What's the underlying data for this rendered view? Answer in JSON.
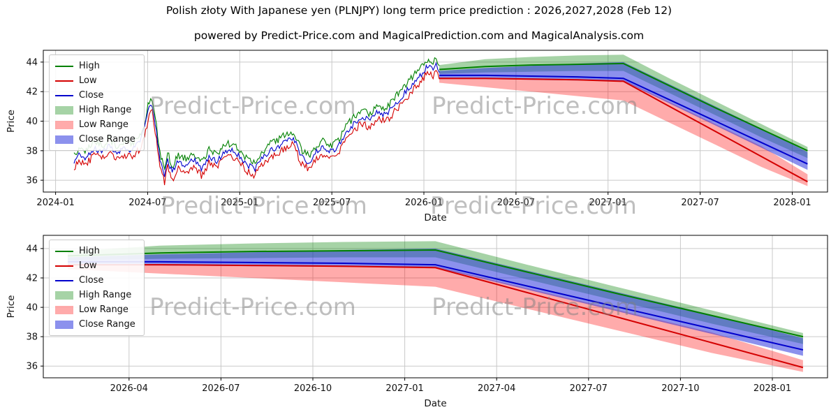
{
  "figure": {
    "title": "Polish złoty With Japanese yen (PLNJPY) long term price prediction : 2026,2027,2028 (Feb 12)",
    "subtitle": "powered by Predict-Price.com and MagicalPrediction.com and MagicalAnalysis.com",
    "watermark_text": "Predict-Price.com"
  },
  "colors": {
    "high": "#008000",
    "low": "#d40000",
    "close": "#0000cc",
    "high_range": "rgba(0,128,0,0.35)",
    "low_range": "rgba(255,0,0,0.33)",
    "close_range": "rgba(35,45,220,0.52)",
    "grid": "#c9c9c9"
  },
  "legend": {
    "items": [
      {
        "label": "High",
        "swatch": "line",
        "color_key": "high"
      },
      {
        "label": "Low",
        "swatch": "line",
        "color_key": "low"
      },
      {
        "label": "Close",
        "swatch": "line",
        "color_key": "close"
      },
      {
        "label": "High Range",
        "swatch": "patch",
        "color_key": "high_range"
      },
      {
        "label": "Low Range",
        "swatch": "patch",
        "color_key": "low_range"
      },
      {
        "label": "Close Range",
        "swatch": "patch",
        "color_key": "close_range"
      }
    ]
  },
  "chart_data": [
    {
      "type": "line",
      "name": "history-and-forecast",
      "xlabel": "Date",
      "ylabel": "Price",
      "x_unit": "months since 2024-01 (0 = 2024-01)",
      "xlim": [
        -0.8,
        50.3
      ],
      "ylim": [
        35.2,
        44.8
      ],
      "yticks": [
        36,
        38,
        40,
        42,
        44
      ],
      "xticks": [
        {
          "x": 0,
          "label": "2024-01"
        },
        {
          "x": 6,
          "label": "2024-07"
        },
        {
          "x": 12,
          "label": "2025-01"
        },
        {
          "x": 18,
          "label": "2025-07"
        },
        {
          "x": 24,
          "label": "2026-01"
        },
        {
          "x": 30,
          "label": "2026-07"
        },
        {
          "x": 36,
          "label": "2027-01"
        },
        {
          "x": 42,
          "label": "2027-07"
        },
        {
          "x": 48,
          "label": "2028-01"
        }
      ],
      "historical": {
        "x": [
          1.2,
          1.6,
          2.0,
          2.5,
          3.0,
          3.5,
          4.0,
          4.5,
          5.0,
          5.5,
          5.8,
          6.1,
          6.3,
          6.5,
          6.8,
          7.1,
          7.3,
          7.6,
          8.0,
          8.5,
          9.0,
          9.5,
          10.0,
          10.5,
          11.0,
          11.5,
          12.0,
          12.5,
          13.0,
          13.5,
          14.0,
          14.5,
          15.0,
          15.5,
          16.0,
          16.5,
          17.0,
          17.5,
          18.0,
          18.5,
          19.0,
          19.5,
          20.0,
          20.5,
          21.0,
          21.5,
          22.0,
          22.5,
          23.0,
          23.5,
          24.0,
          24.3,
          24.6,
          24.8,
          25.0
        ],
        "close": [
          37.3,
          37.8,
          37.5,
          38.2,
          37.9,
          38.3,
          37.8,
          38.2,
          38.0,
          38.6,
          39.5,
          40.9,
          41.1,
          39.8,
          37.5,
          36.2,
          37.4,
          36.5,
          37.3,
          37.0,
          37.4,
          36.8,
          37.6,
          37.3,
          37.9,
          38.1,
          37.6,
          37.0,
          36.8,
          37.5,
          38.0,
          38.3,
          38.6,
          38.9,
          37.6,
          37.2,
          38.0,
          38.2,
          37.9,
          38.4,
          39.3,
          39.9,
          40.3,
          40.0,
          40.7,
          40.4,
          41.0,
          41.6,
          42.2,
          42.8,
          43.4,
          43.8,
          43.5,
          44.0,
          43.3
        ],
        "high_offset": 0.45,
        "low_offset": 0.45,
        "noise": 0.2
      },
      "forecast": {
        "x": [
          25,
          28,
          31,
          34,
          37,
          40,
          43,
          46,
          49
        ],
        "high": [
          43.5,
          43.7,
          43.8,
          43.85,
          43.9,
          42.4,
          40.9,
          39.45,
          38.0
        ],
        "close": [
          43.1,
          43.1,
          43.05,
          43.0,
          42.9,
          41.45,
          40.0,
          38.55,
          37.1
        ],
        "low": [
          42.9,
          42.9,
          42.85,
          42.8,
          42.7,
          41.0,
          39.3,
          37.6,
          35.9
        ],
        "bands": {
          "high_range": {
            "upper": [
              43.8,
              44.2,
              44.35,
              44.45,
              44.5,
              42.9,
              41.35,
              39.8,
              38.25
            ],
            "lower": [
              43.2,
              43.3,
              43.35,
              43.4,
              43.4,
              41.9,
              40.4,
              38.9,
              37.5
            ]
          },
          "low_range": {
            "upper": [
              42.95,
              42.9,
              42.9,
              42.85,
              42.8,
              41.3,
              39.8,
              38.3,
              36.4
            ],
            "lower": [
              42.6,
              42.3,
              42.0,
              41.7,
              41.4,
              39.9,
              38.4,
              36.9,
              35.6
            ]
          },
          "close_range": {
            "upper": [
              43.4,
              43.6,
              43.75,
              43.9,
              44.0,
              42.5,
              41.0,
              39.5,
              37.9
            ],
            "lower": [
              42.85,
              42.85,
              42.8,
              42.75,
              42.7,
              41.2,
              39.7,
              38.2,
              36.7
            ]
          }
        }
      },
      "show_legend": true
    },
    {
      "type": "line",
      "name": "forecast-detail",
      "xlabel": "Date",
      "ylabel": "Price",
      "x_unit": "months since 2024-01 (0 = 2024-01)",
      "xlim": [
        24.2,
        49.8
      ],
      "ylim": [
        35.2,
        44.9
      ],
      "yticks": [
        36,
        38,
        40,
        42,
        44
      ],
      "xticks": [
        {
          "x": 27,
          "label": "2026-04"
        },
        {
          "x": 30,
          "label": "2026-07"
        },
        {
          "x": 33,
          "label": "2026-10"
        },
        {
          "x": 36,
          "label": "2027-01"
        },
        {
          "x": 39,
          "label": "2027-04"
        },
        {
          "x": 42,
          "label": "2027-07"
        },
        {
          "x": 45,
          "label": "2027-10"
        },
        {
          "x": 48,
          "label": "2028-01"
        }
      ],
      "forecast": {
        "x": [
          25,
          28,
          31,
          34,
          37,
          40,
          43,
          46,
          49
        ],
        "high": [
          43.5,
          43.7,
          43.8,
          43.85,
          43.9,
          42.4,
          40.9,
          39.45,
          38.0
        ],
        "close": [
          43.1,
          43.1,
          43.05,
          43.0,
          42.9,
          41.45,
          40.0,
          38.55,
          37.1
        ],
        "low": [
          42.9,
          42.9,
          42.85,
          42.8,
          42.7,
          41.0,
          39.3,
          37.6,
          35.9
        ],
        "bands": {
          "high_range": {
            "upper": [
              43.8,
              44.2,
              44.35,
              44.45,
              44.5,
              42.9,
              41.35,
              39.8,
              38.25
            ],
            "lower": [
              43.2,
              43.3,
              43.35,
              43.4,
              43.4,
              41.9,
              40.4,
              38.9,
              37.5
            ]
          },
          "low_range": {
            "upper": [
              42.95,
              42.9,
              42.9,
              42.85,
              42.8,
              41.3,
              39.8,
              38.3,
              36.4
            ],
            "lower": [
              42.6,
              42.3,
              42.0,
              41.7,
              41.4,
              39.9,
              38.4,
              36.9,
              35.6
            ]
          },
          "close_range": {
            "upper": [
              43.4,
              43.6,
              43.75,
              43.9,
              44.0,
              42.5,
              41.0,
              39.5,
              37.9
            ],
            "lower": [
              42.85,
              42.85,
              42.8,
              42.75,
              42.7,
              41.2,
              39.7,
              38.2,
              36.7
            ]
          }
        }
      },
      "show_legend": true
    }
  ]
}
